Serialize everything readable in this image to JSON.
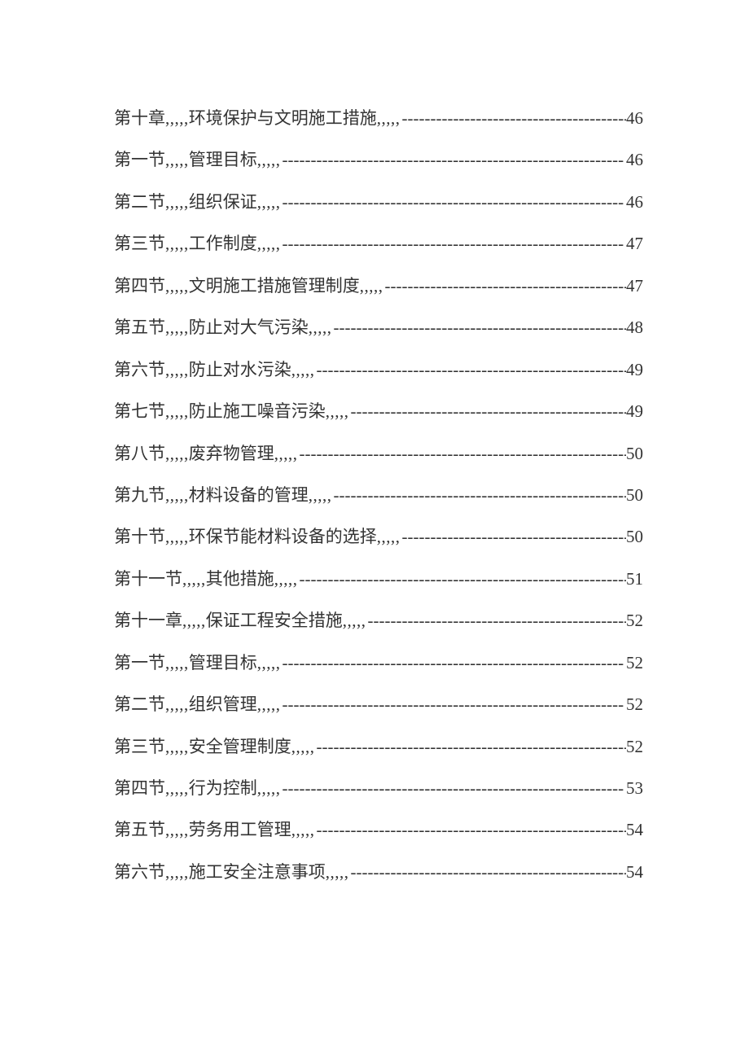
{
  "toc": {
    "separator": ",,,,,",
    "trailing": ",,,,,",
    "dash_fill": "------------------------------------------------------------",
    "text_color": "#333333",
    "background_color": "#ffffff",
    "font_size_pt": 16,
    "entries": [
      {
        "label": "第十章",
        "title": "环境保护与文明施工措施",
        "page": "46"
      },
      {
        "label": "第一节",
        "title": "管理目标",
        "page": "46"
      },
      {
        "label": "第二节",
        "title": "组织保证",
        "page": "46"
      },
      {
        "label": "第三节",
        "title": "工作制度",
        "page": "47"
      },
      {
        "label": "第四节",
        "title": "文明施工措施管理制度",
        "page": "47"
      },
      {
        "label": "第五节",
        "title": "防止对大气污染",
        "page": "48"
      },
      {
        "label": "第六节",
        "title": "防止对水污染",
        "page": "49"
      },
      {
        "label": "第七节",
        "title": "防止施工噪音污染",
        "page": "49"
      },
      {
        "label": "第八节",
        "title": "废弃物管理",
        "page": "50"
      },
      {
        "label": "第九节",
        "title": "材料设备的管理",
        "page": "50"
      },
      {
        "label": "第十节",
        "title": "环保节能材料设备的选择",
        "page": "50"
      },
      {
        "label": "第十一节",
        "title": "其他措施",
        "page": "51"
      },
      {
        "label": "第十一章",
        "title": "保证工程安全措施",
        "page": "52"
      },
      {
        "label": "第一节",
        "title": "管理目标",
        "page": "52"
      },
      {
        "label": "第二节",
        "title": "组织管理",
        "page": "52"
      },
      {
        "label": "第三节",
        "title": "安全管理制度",
        "page": "52"
      },
      {
        "label": "第四节",
        "title": "行为控制",
        "page": "53"
      },
      {
        "label": "第五节",
        "title": "劳务用工管理",
        "page": "54"
      },
      {
        "label": "第六节",
        "title": "施工安全注意事项",
        "page": "54"
      }
    ]
  }
}
